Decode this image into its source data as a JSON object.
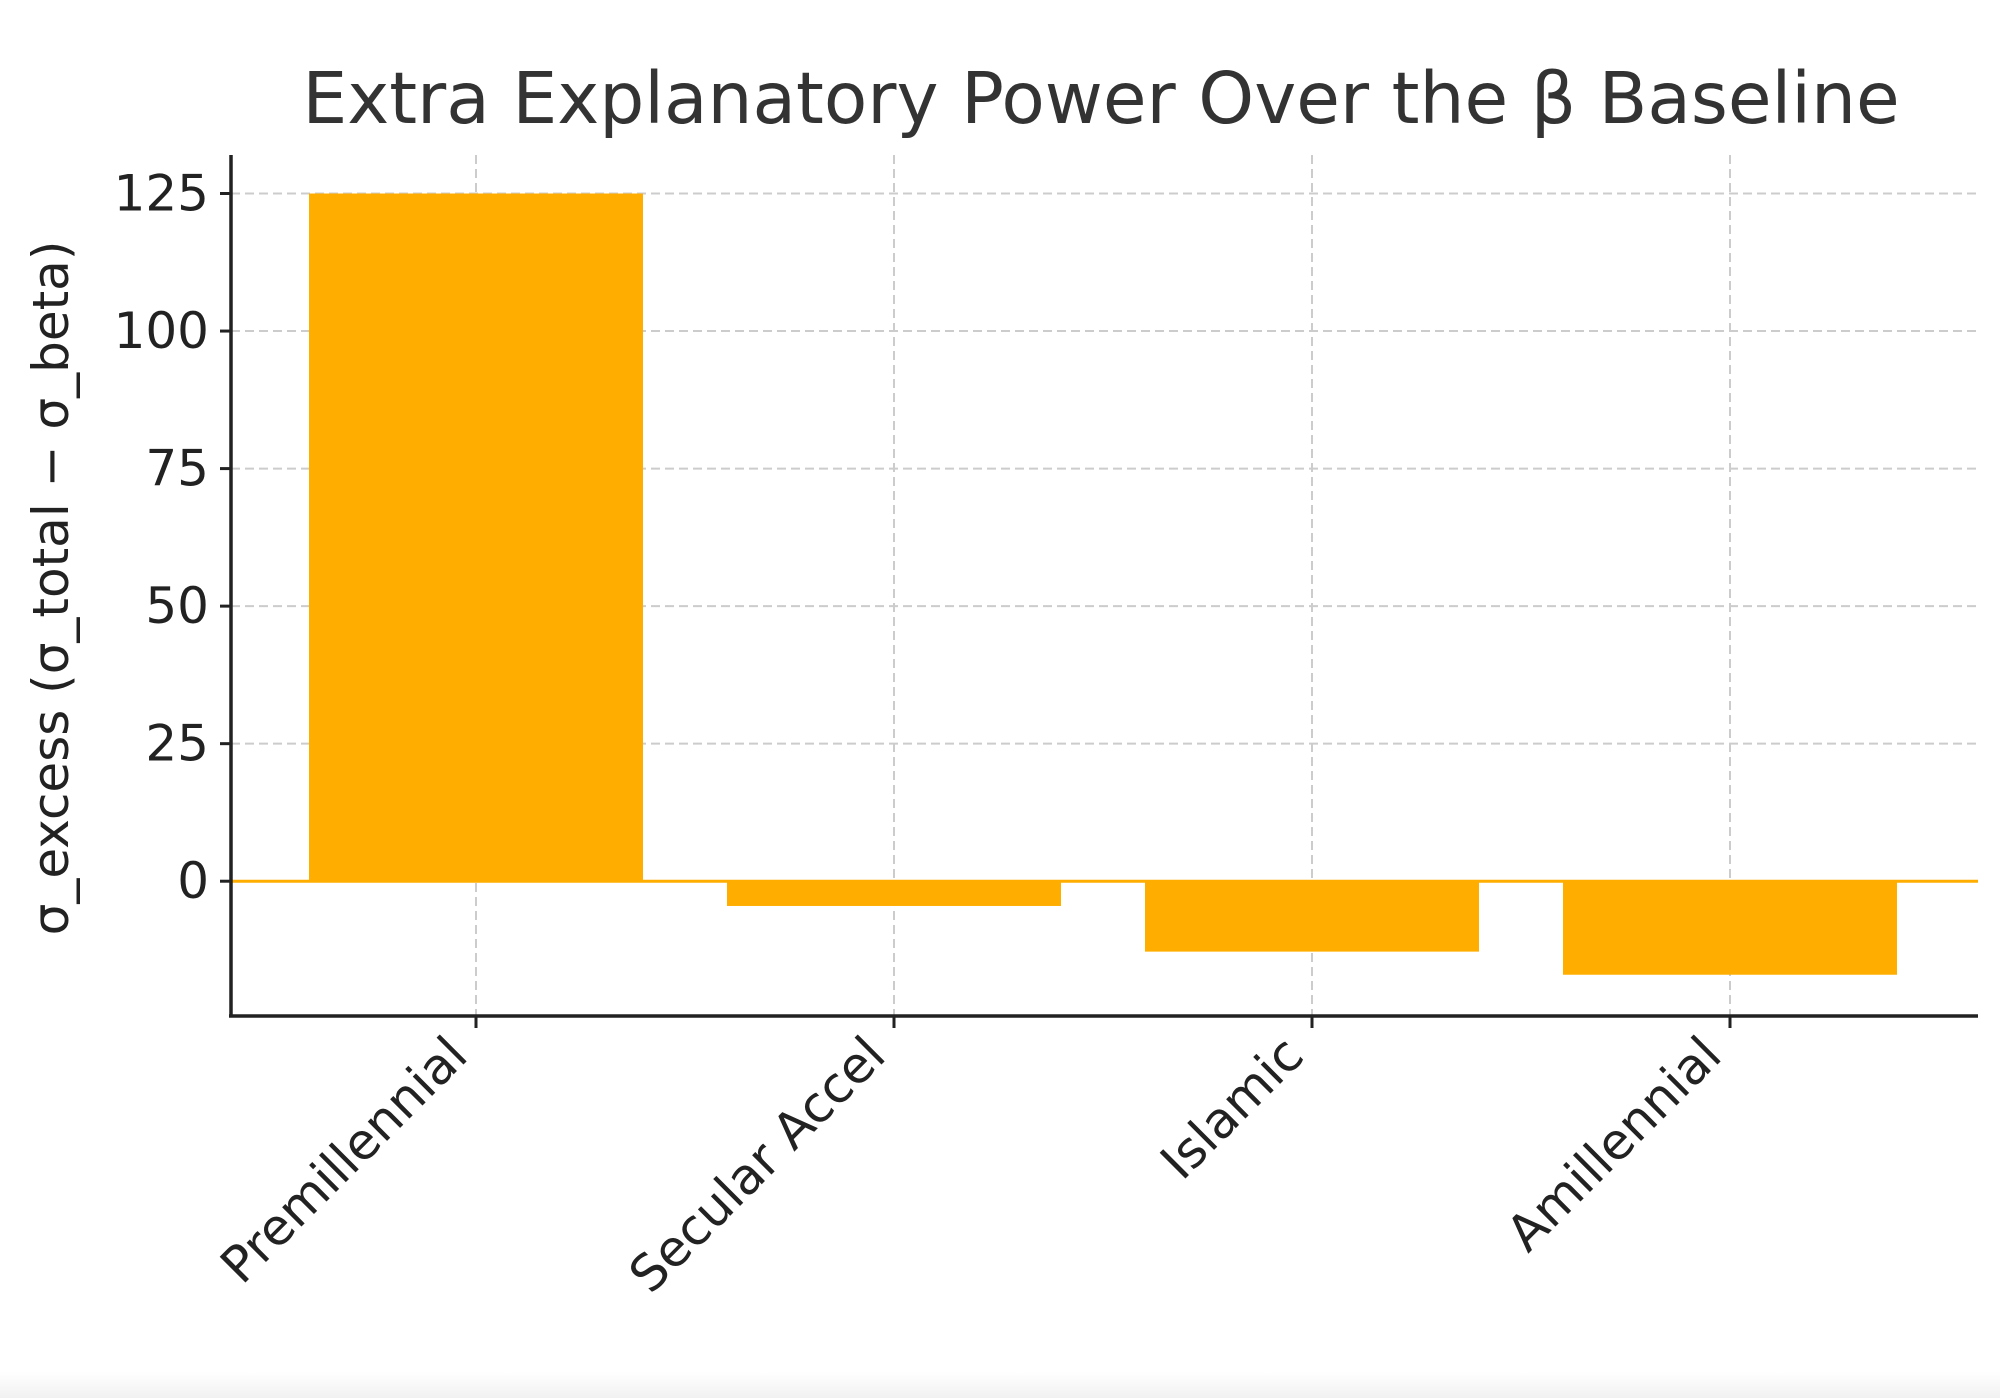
{
  "chart_data": {
    "type": "bar",
    "title": "Extra Explanatory Power Over the β Baseline",
    "xlabel": "",
    "ylabel": "σ_excess  (σ_total − σ_beta)",
    "categories": [
      "Premillennial",
      "Secular Accel",
      "Islamic",
      "Amillennial"
    ],
    "values": [
      125,
      -4.5,
      -12.8,
      -17
    ],
    "ylim": [
      -24.5,
      132
    ],
    "yticks": [
      0,
      25,
      50,
      75,
      100,
      125
    ],
    "grid": true,
    "bar_color": "#FFAE00",
    "zero_line_color": "#FFAE00"
  }
}
